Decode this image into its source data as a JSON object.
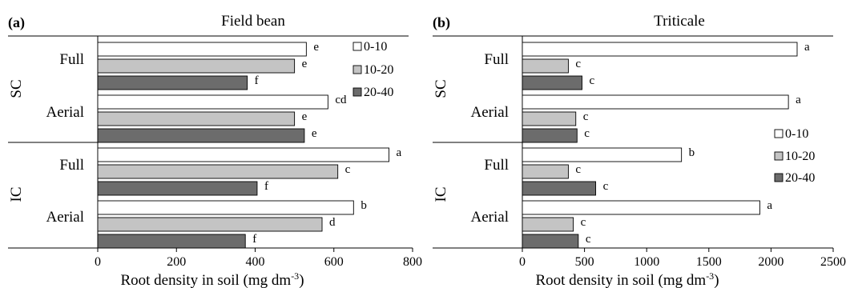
{
  "chart_data": [
    {
      "panel_label": "(a)",
      "title": "Field bean",
      "type": "bar",
      "orientation": "horizontal",
      "xlabel": "Root density in soil (mg dm",
      "xlabel_sup": "-3",
      "xlabel_close": ")",
      "xlim": [
        0,
        800
      ],
      "xticks": [
        0,
        200,
        400,
        600,
        800
      ],
      "xtick_labels": [
        "0",
        "200",
        "400",
        "600",
        "800"
      ],
      "systems": [
        "SC",
        "IC"
      ],
      "groups": [
        {
          "system": "SC",
          "label": "Full"
        },
        {
          "system": "SC",
          "label": "Aerial"
        },
        {
          "system": "IC",
          "label": "Full"
        },
        {
          "system": "IC",
          "label": "Aerial"
        }
      ],
      "series": [
        {
          "name": "0-10",
          "color": "#ffffff",
          "values": [
            530,
            585,
            740,
            650
          ],
          "letters": [
            "e",
            "cd",
            "a",
            "b"
          ]
        },
        {
          "name": "10-20",
          "color": "#c4c4c4",
          "values": [
            500,
            500,
            610,
            570
          ],
          "letters": [
            "e",
            "e",
            "c",
            "d"
          ]
        },
        {
          "name": "20-40",
          "color": "#6c6c6c",
          "values": [
            380,
            525,
            405,
            375
          ],
          "letters": [
            "f",
            "e",
            "f",
            "f"
          ]
        }
      ],
      "legend_position": "top-right"
    },
    {
      "panel_label": "(b)",
      "title": "Triticale",
      "type": "bar",
      "orientation": "horizontal",
      "xlabel": "Root density in soil (mg dm",
      "xlabel_sup": "-3",
      "xlabel_close": ")",
      "xlim": [
        0,
        2500
      ],
      "xticks": [
        0,
        500,
        1000,
        1500,
        2000,
        2500
      ],
      "xtick_labels": [
        "0",
        "500",
        "1000",
        "1500",
        "2000",
        "2500"
      ],
      "systems": [
        "SC",
        "IC"
      ],
      "groups": [
        {
          "system": "SC",
          "label": "Full"
        },
        {
          "system": "SC",
          "label": "Aerial"
        },
        {
          "system": "IC",
          "label": "Full"
        },
        {
          "system": "IC",
          "label": "Aerial"
        }
      ],
      "series": [
        {
          "name": "0-10",
          "color": "#ffffff",
          "values": [
            2210,
            2140,
            1280,
            1910
          ],
          "letters": [
            "a",
            "a",
            "b",
            "a"
          ]
        },
        {
          "name": "10-20",
          "color": "#c4c4c4",
          "values": [
            370,
            430,
            370,
            410
          ],
          "letters": [
            "c",
            "c",
            "c",
            "c"
          ]
        },
        {
          "name": "20-40",
          "color": "#6c6c6c",
          "values": [
            480,
            440,
            590,
            450
          ],
          "letters": [
            "c",
            "c",
            "c",
            "c"
          ]
        }
      ],
      "legend_position": "middle-right"
    }
  ]
}
